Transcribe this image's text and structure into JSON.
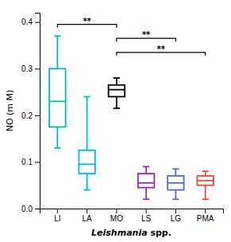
{
  "chart_data": {
    "type": "box",
    "categories": [
      "LI",
      "LA",
      "MO",
      "LS",
      "LG",
      "PMA"
    ],
    "colors": [
      "#00BFA5",
      "#00BCD4",
      "#000000",
      "#9C27B0",
      "#5C6BC0",
      "#F44336"
    ],
    "boxes": [
      {
        "whislo": 0.13,
        "q1": 0.175,
        "med": 0.23,
        "q3": 0.3,
        "whishi": 0.37
      },
      {
        "whislo": 0.04,
        "q1": 0.075,
        "med": 0.095,
        "q3": 0.125,
        "whishi": 0.24
      },
      {
        "whislo": 0.215,
        "q1": 0.24,
        "med": 0.255,
        "q3": 0.265,
        "whishi": 0.28
      },
      {
        "whislo": 0.02,
        "q1": 0.045,
        "med": 0.055,
        "q3": 0.075,
        "whishi": 0.09
      },
      {
        "whislo": 0.02,
        "q1": 0.04,
        "med": 0.055,
        "q3": 0.07,
        "whishi": 0.085
      },
      {
        "whislo": 0.02,
        "q1": 0.05,
        "med": 0.06,
        "q3": 0.07,
        "whishi": 0.08
      }
    ],
    "ylabel": "NO (m M)",
    "xlabel": "Leishmania spp.",
    "ylim": [
      0.0,
      0.42
    ],
    "yticks": [
      {
        "value": 0.0,
        "label": "0.0"
      },
      0.1,
      0.2,
      0.3,
      0.4
    ],
    "annotations": [
      {
        "x1": "LI",
        "x2": "MO",
        "y": 0.395,
        "text": "**"
      },
      {
        "x1": "MO",
        "x2": "LG",
        "y": 0.365,
        "text": "**"
      },
      {
        "x1": "MO",
        "x2": "PMA",
        "y": 0.335,
        "text": "**"
      }
    ]
  }
}
